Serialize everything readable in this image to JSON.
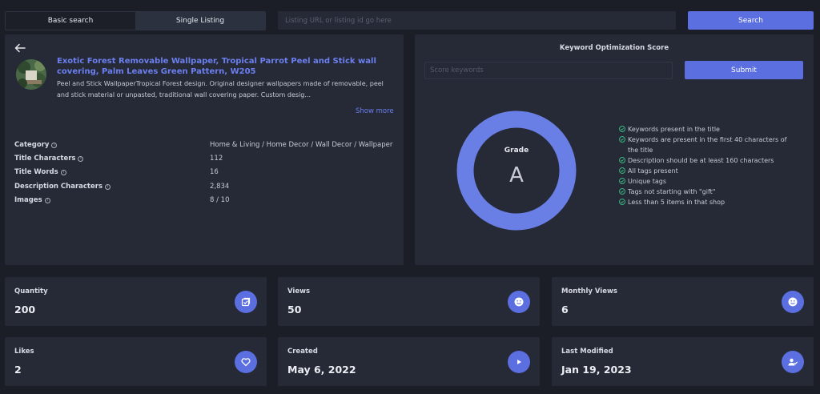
{
  "tabs": [
    {
      "label": "Basic search",
      "active": false
    },
    {
      "label": "Single Listing",
      "active": true
    }
  ],
  "search": {
    "placeholder": "Listing URL or listing id go here",
    "button_label": "Search"
  },
  "listing": {
    "title": "Exotic Forest Removable Wallpaper, Tropical Parrot Peel and Stick wall covering, Palm Leaves Green Pattern, W205",
    "description": "Peel and Stick WallpaperTropical Forest design. Original designer wallpapers made of removable, peel and stick material or unpasted, traditional wall covering paper. Custom desig...",
    "show_more_label": "Show more",
    "details": [
      {
        "label": "Category",
        "value": "Home & Living / Home Decor / Wall Decor / Wallpaper"
      },
      {
        "label": "Title Characters",
        "value": "112"
      },
      {
        "label": "Title Words",
        "value": "16"
      },
      {
        "label": "Description Characters",
        "value": "2,834"
      },
      {
        "label": "Images",
        "value": "8 / 10"
      }
    ]
  },
  "keyword_panel": {
    "title": "Keyword Optimization Score",
    "input_placeholder": "Score keywords",
    "submit_label": "Submit",
    "grade_label": "Grade",
    "grade_value": "A",
    "checks": [
      "Keywords present in the title",
      "Keywords are present in the first 40 characters of the title",
      "Description should be at least 160 characters",
      "All tags present",
      "Unique tags",
      "Tags not starting with \"gift\"",
      "Less than 5 items in that shop"
    ]
  },
  "stats": [
    {
      "label": "Quantity",
      "value": "200",
      "icon": "checkbox-icon"
    },
    {
      "label": "Views",
      "value": "50",
      "icon": "smile-icon"
    },
    {
      "label": "Monthly Views",
      "value": "6",
      "icon": "smile-icon"
    },
    {
      "label": "Likes",
      "value": "2",
      "icon": "heart-icon"
    },
    {
      "label": "Created",
      "value": "May 6, 2022",
      "icon": "play-icon"
    },
    {
      "label": "Last Modified",
      "value": "Jan 19, 2023",
      "icon": "user-check-icon"
    }
  ],
  "colors": {
    "background": "#1b1e27",
    "panel": "#262a36",
    "accent": "#5b6fe0",
    "link": "#6b7ff0",
    "check": "#3ecf8e"
  }
}
